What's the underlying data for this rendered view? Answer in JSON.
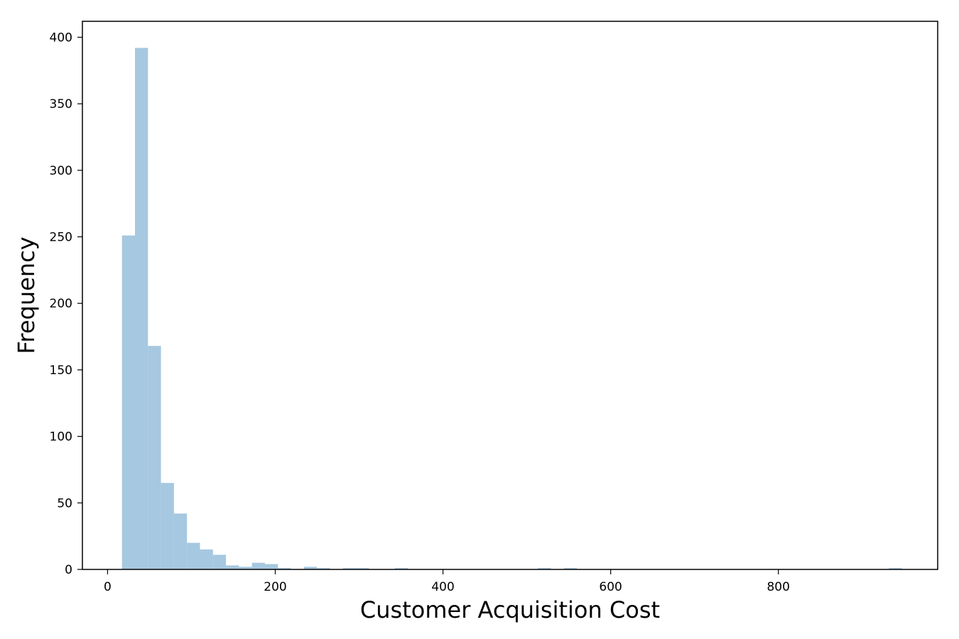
{
  "chart_data": {
    "type": "bar",
    "subtype": "histogram",
    "title": "",
    "xlabel": "Customer Acquisition Cost",
    "ylabel": "Frequency",
    "bar_color": "#a6c8e0",
    "xlim": [
      -30,
      990
    ],
    "ylim": [
      0,
      412
    ],
    "xticks": [
      0,
      200,
      400,
      600,
      800
    ],
    "yticks": [
      0,
      50,
      100,
      150,
      200,
      250,
      300,
      350,
      400
    ],
    "bin_width": 15.5,
    "bins": [
      {
        "start": 17.2,
        "count": 251
      },
      {
        "start": 32.7,
        "count": 392
      },
      {
        "start": 48.2,
        "count": 168
      },
      {
        "start": 63.7,
        "count": 65
      },
      {
        "start": 79.2,
        "count": 42
      },
      {
        "start": 94.7,
        "count": 20
      },
      {
        "start": 110.2,
        "count": 15
      },
      {
        "start": 125.7,
        "count": 11
      },
      {
        "start": 141.2,
        "count": 3
      },
      {
        "start": 156.7,
        "count": 2
      },
      {
        "start": 172.2,
        "count": 5
      },
      {
        "start": 187.7,
        "count": 4
      },
      {
        "start": 203.2,
        "count": 1
      },
      {
        "start": 234.2,
        "count": 2
      },
      {
        "start": 249.7,
        "count": 1
      },
      {
        "start": 280.7,
        "count": 1
      },
      {
        "start": 296.2,
        "count": 1
      },
      {
        "start": 342.7,
        "count": 1
      },
      {
        "start": 513.2,
        "count": 1
      },
      {
        "start": 544.2,
        "count": 1
      },
      {
        "start": 931.7,
        "count": 1
      }
    ],
    "grid": false,
    "legend": "none"
  }
}
